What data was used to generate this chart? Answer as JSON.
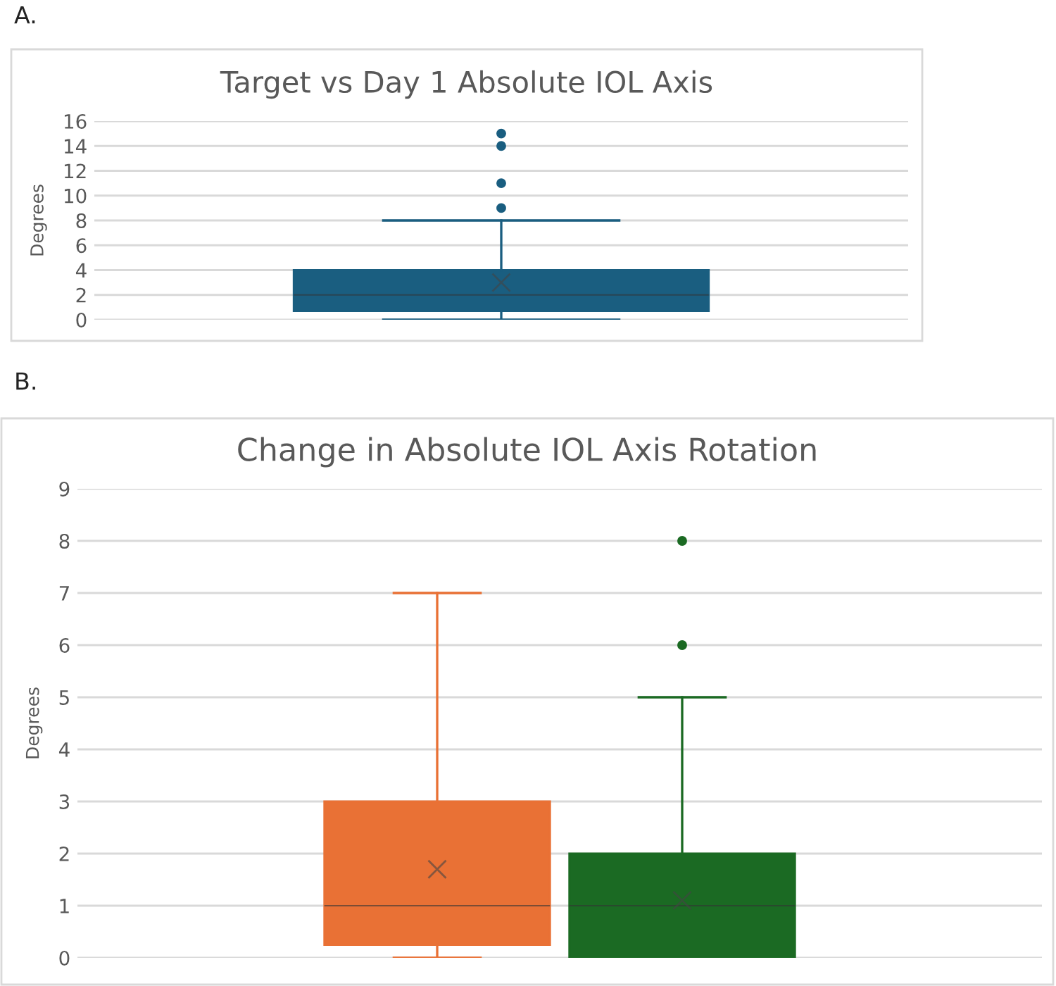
{
  "chart_data": [
    {
      "type": "box",
      "title": "Target vs Day 1 Absolute IOL Axis",
      "ylabel": "Degrees",
      "annotations": [
        "A."
      ],
      "categories": [
        null
      ],
      "series": [
        {
          "color": "#1a5e80",
          "boxes": [
            {
              "low": 0,
              "q1": 0.7,
              "median": 2,
              "q3": 4,
              "high": 8,
              "mean": 3,
              "outliers": [
                9,
                11,
                14,
                15
              ]
            }
          ]
        }
      ],
      "ylim": [
        0,
        16
      ],
      "yticks": [
        0,
        2,
        4,
        6,
        8,
        10,
        12,
        14,
        16
      ],
      "grid": "y"
    },
    {
      "type": "box",
      "title": "Change in Absolute IOL Axis Rotation",
      "ylabel": "Degrees",
      "annotations": [
        "B."
      ],
      "categories": [
        null
      ],
      "series": [
        {
          "color": "#e97135",
          "boxes": [
            {
              "low": 0,
              "q1": 0.25,
              "median": 1,
              "q3": 3,
              "high": 7,
              "mean": 1.7
            }
          ]
        },
        {
          "color": "#1b6a23",
          "boxes": [
            {
              "low": 0,
              "q1": 0,
              "median": 1,
              "q3": 2,
              "high": 5,
              "mean": 1.1,
              "outliers": [
                6,
                8
              ]
            }
          ]
        }
      ],
      "ylim": [
        0,
        9
      ],
      "yticks": [
        0,
        1,
        2,
        3,
        4,
        5,
        6,
        7,
        8,
        9
      ],
      "grid": "y"
    }
  ]
}
